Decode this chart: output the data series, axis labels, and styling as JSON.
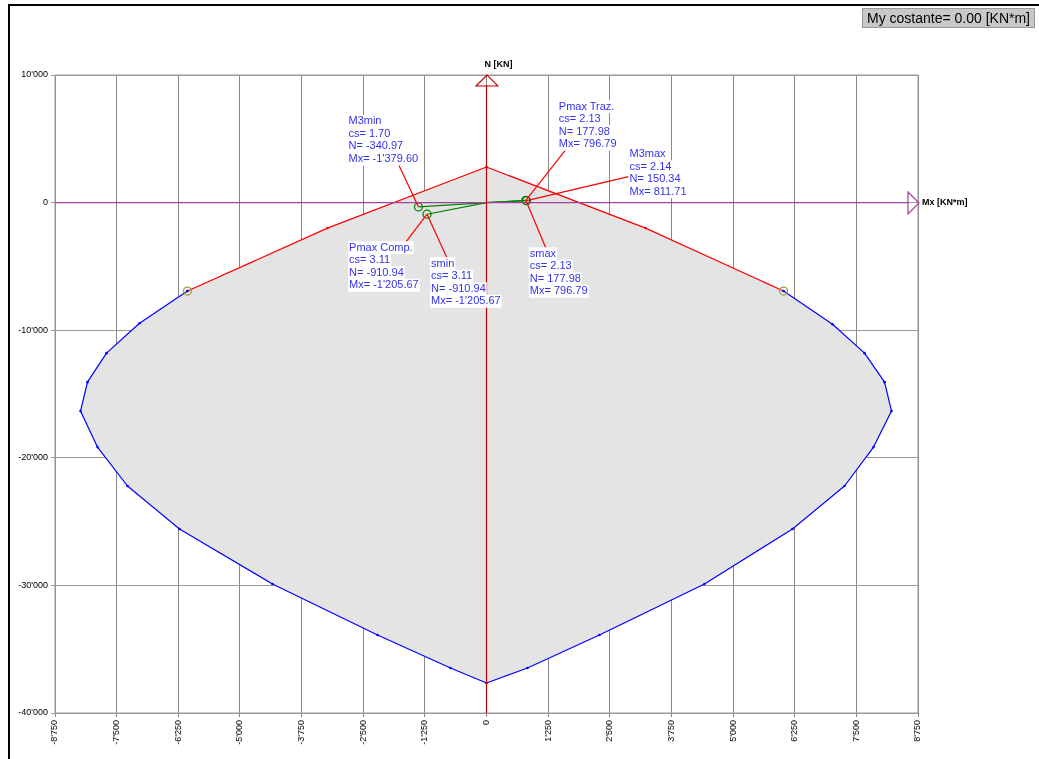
{
  "chart_data": {
    "type": "line",
    "title": "My costante= 0.00  [KN*m]",
    "xlabel": "Mx [KN*m]",
    "ylabel": "N [KN]",
    "xlim": [
      -8750,
      8750
    ],
    "ylim": [
      -40000,
      10000
    ],
    "xticks": [
      {
        "value": -8750,
        "label": "-8'750"
      },
      {
        "value": -7500,
        "label": "-7'500"
      },
      {
        "value": -6250,
        "label": "-6'250"
      },
      {
        "value": -5000,
        "label": "-5'000"
      },
      {
        "value": -3750,
        "label": "-3'750"
      },
      {
        "value": -2500,
        "label": "-2'500"
      },
      {
        "value": -1250,
        "label": "-1'250"
      },
      0,
      {
        "value": 1250,
        "label": "1'250"
      },
      {
        "value": 2500,
        "label": "2'500"
      },
      {
        "value": 3750,
        "label": "3'750"
      },
      {
        "value": 5000,
        "label": "5'000"
      },
      {
        "value": 6250,
        "label": "6'250"
      },
      {
        "value": 7500,
        "label": "7'500"
      },
      {
        "value": 8750,
        "label": "8'750"
      }
    ],
    "yticks": [
      {
        "value": -40000,
        "label": "-40'000"
      },
      {
        "value": -30000,
        "label": "-30'000"
      },
      {
        "value": -20000,
        "label": "-20'000"
      },
      {
        "value": -10000,
        "label": "-10'000"
      },
      0,
      {
        "value": 10000,
        "label": "10'000"
      }
    ],
    "grid": true,
    "legend": false,
    "marker": "none",
    "line_style": "solid",
    "series": [
      {
        "type": "line",
        "color": "#008000",
        "x": [
          -1379.6,
          0,
          796.79
        ],
        "values": [
          -340.97,
          0,
          177.98
        ]
      },
      {
        "type": "line",
        "color": "#008000",
        "x": [
          -1205.67,
          0,
          811.71
        ],
        "values": [
          -910.94,
          0,
          150.34
        ]
      },
      {
        "type": "scatter",
        "color": "#008000",
        "marker": "circle",
        "x": [
          -1379.6,
          -1205.67,
          796.79,
          811.71
        ],
        "values": [
          -340.97,
          -910.94,
          177.98,
          150.34
        ]
      },
      {
        "type": "scatter",
        "color": "#a0a040",
        "marker": "circle",
        "x": [
          -6064,
          6023
        ],
        "values": [
          -6930,
          -6930
        ]
      },
      {
        "type": "area",
        "color": "#e4e4e4",
        "colors": [
          "#ff0000",
          "#ff0000",
          "#ff0000",
          "#ff0000",
          "#0000ff",
          "#0000ff",
          "#0000ff",
          "#0000ff",
          "#0000ff",
          "#0000ff",
          "#0000ff",
          "#0000ff",
          "#0000ff",
          "#0000ff",
          "#0000ff",
          "#0000ff",
          "#0000ff",
          "#0000ff",
          "#0000ff",
          "#0000ff",
          "#0000ff",
          "#0000ff",
          "#0000ff",
          "#0000ff",
          "#0000ff",
          "#0000ff",
          "#0000ff"
        ],
        "x": [
          -6064,
          -3225,
          0,
          3225,
          6023,
          7017,
          7666,
          8072,
          8213,
          7848,
          7260,
          6205,
          4420,
          2290,
          830,
          0,
          -730,
          -2210,
          -4340,
          -6226,
          -7280,
          -7889,
          -8233,
          -8092,
          -7706,
          -7037,
          -6064
        ],
        "values": [
          -6930,
          -2000,
          2790,
          -2000,
          -6930,
          -9530,
          -11800,
          -14070,
          -16340,
          -19160,
          -22210,
          -25580,
          -29890,
          -33890,
          -36470,
          -37650,
          -36470,
          -33890,
          -29890,
          -25580,
          -22210,
          -19160,
          -16340,
          -14070,
          -11800,
          -9450,
          -6930
        ]
      }
    ],
    "ref_lines": [
      {
        "axis": "y",
        "value": 0,
        "color": "#a040a0"
      },
      {
        "axis": "x",
        "value": 0,
        "color": "#c00000"
      }
    ],
    "annotations": [
      {
        "text": "M3min\ncs= 1.70\nN= -340.97\nMx= -1'379.60",
        "x": -1379.6,
        "y": -340.97
      },
      {
        "text": "Pmax Comp.\ncs= 3.11\nN= -910.94\nMx= -1'205.67",
        "x": -1205.67,
        "y": -910.94
      },
      {
        "text": "smin\ncs= 3.11\nN= -910.94\nMx= -1'205.67",
        "x": -1205.67,
        "y": -910.94
      },
      {
        "text": "Pmax Traz.\ncs= 2.13\nN= 177.98\nMx= 796.79",
        "x": 796.79,
        "y": 177.98
      },
      {
        "text": "M3max\ncs= 2.14\nN= 150.34\nMx= 811.71",
        "x": 811.71,
        "y": 150.34
      },
      {
        "text": "smax\ncs= 2.13\nN= 177.98\nMx= 796.79",
        "x": 796.79,
        "y": 177.98
      }
    ]
  }
}
